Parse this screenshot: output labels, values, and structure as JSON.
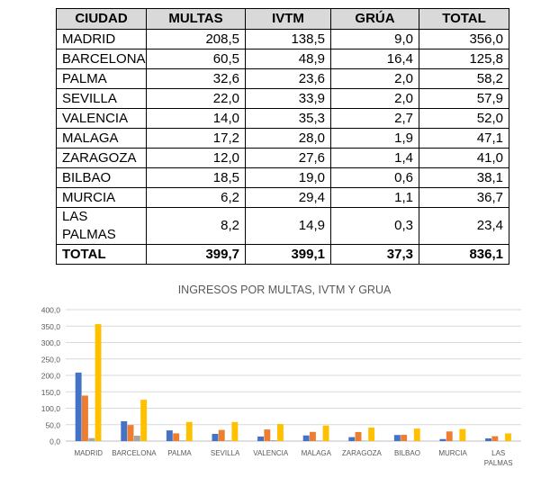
{
  "table": {
    "headers": [
      "CIUDAD",
      "MULTAS",
      "IVTM",
      "GRÚA",
      "TOTAL"
    ],
    "rows": [
      [
        "MADRID",
        "208,5",
        "138,5",
        "9,0",
        "356,0"
      ],
      [
        "BARCELONA",
        "60,5",
        "48,9",
        "16,4",
        "125,8"
      ],
      [
        "PALMA",
        "32,6",
        "23,6",
        "2,0",
        "58,2"
      ],
      [
        "SEVILLA",
        "22,0",
        "33,9",
        "2,0",
        "57,9"
      ],
      [
        "VALENCIA",
        "14,0",
        "35,3",
        "2,7",
        "52,0"
      ],
      [
        "MALAGA",
        "17,2",
        "28,0",
        "1,9",
        "47,1"
      ],
      [
        "ZARAGOZA",
        "12,0",
        "27,6",
        "1,4",
        "41,0"
      ],
      [
        "BILBAO",
        "18,5",
        "19,0",
        "0,6",
        "38,1"
      ],
      [
        "MURCIA",
        "6,2",
        "29,4",
        "1,1",
        "36,7"
      ],
      [
        "LAS PALMAS",
        "8,2",
        "14,9",
        "0,3",
        "23,4"
      ]
    ],
    "total": [
      "TOTAL",
      "399,7",
      "399,1",
      "37,3",
      "836,1"
    ]
  },
  "chart_data": {
    "type": "bar",
    "title": "INGRESOS POR MULTAS, IVTM Y GRUA",
    "categories": [
      "MADRID",
      "BARCELONA",
      "PALMA",
      "SEVILLA",
      "VALENCIA",
      "MALAGA",
      "ZARAGOZA",
      "BILBAO",
      "MURCIA",
      "LAS PALMAS"
    ],
    "series": [
      {
        "values": [
          208.5,
          60.5,
          32.6,
          22.0,
          14.0,
          17.2,
          12.0,
          18.5,
          6.2,
          8.2
        ],
        "color": "#4472c4"
      },
      {
        "values": [
          138.5,
          48.9,
          23.6,
          33.9,
          35.3,
          28.0,
          27.6,
          19.0,
          29.4,
          14.9
        ],
        "color": "#ed7d31"
      },
      {
        "values": [
          9.0,
          16.4,
          2.0,
          2.0,
          2.7,
          1.9,
          1.4,
          0.6,
          1.1,
          0.3
        ],
        "color": "#a5a5a5"
      },
      {
        "values": [
          356.0,
          125.8,
          58.2,
          57.9,
          52.0,
          47.1,
          41.0,
          38.1,
          36.7,
          23.4
        ],
        "color": "#ffc000"
      }
    ],
    "yticks": [
      "0,0",
      "50,0",
      "100,0",
      "150,0",
      "200,0",
      "250,0",
      "300,0",
      "350,0",
      "400,0"
    ],
    "ylim": [
      0,
      400
    ],
    "grid": true,
    "legend": false
  }
}
